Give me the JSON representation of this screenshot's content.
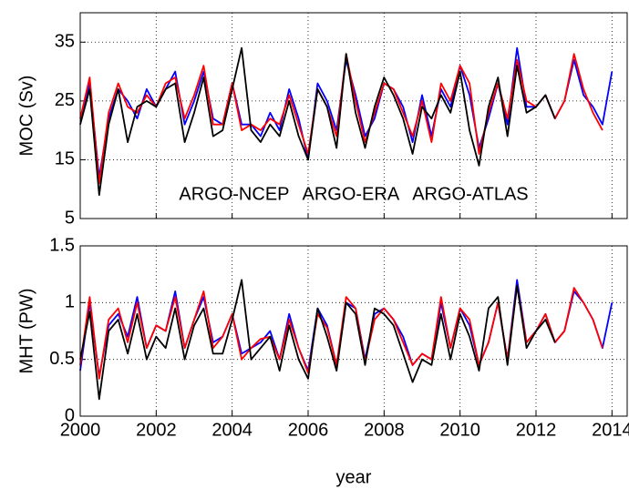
{
  "chart_data": [
    {
      "type": "line",
      "ylabel": "MOC (Sv)",
      "xlim": [
        2000,
        2014.4
      ],
      "xticks": [
        2000,
        2002,
        2004,
        2006,
        2008,
        2010,
        2012,
        2014
      ],
      "ylim": [
        5,
        40
      ],
      "yticks": [
        5,
        15,
        25,
        35
      ],
      "grid": true,
      "legend": "lower center",
      "x": [
        2000,
        2000.25,
        2000.5,
        2000.75,
        2001,
        2001.25,
        2001.5,
        2001.75,
        2002,
        2002.25,
        2002.5,
        2002.75,
        2003,
        2003.25,
        2003.5,
        2003.75,
        2004,
        2004.25,
        2004.5,
        2004.75,
        2005,
        2005.25,
        2005.5,
        2005.75,
        2006,
        2006.25,
        2006.5,
        2006.75,
        2007,
        2007.25,
        2007.5,
        2007.75,
        2008,
        2008.25,
        2008.5,
        2008.75,
        2009,
        2009.25,
        2009.5,
        2009.75,
        2010,
        2010.25,
        2010.5,
        2010.75,
        2011,
        2011.25,
        2011.5,
        2011.75,
        2012,
        2012.25,
        2012.5,
        2012.75,
        2013,
        2013.25,
        2013.5,
        2013.75,
        2014
      ],
      "series": [
        {
          "name": "ARGO-NCEP",
          "color": "#0000ff",
          "values": [
            21,
            28,
            12,
            22,
            27,
            25,
            22,
            27,
            24,
            27,
            30,
            21,
            25,
            30,
            22,
            21,
            28,
            21,
            21,
            19,
            23,
            20,
            27,
            22,
            15,
            28,
            25,
            20,
            32,
            26,
            19,
            22,
            28,
            27,
            24,
            18,
            26,
            19,
            27,
            24,
            31,
            26,
            17,
            22,
            28,
            21,
            34,
            24,
            24,
            26,
            22,
            25,
            32,
            26,
            24,
            21,
            30
          ]
        },
        {
          "name": "ARGO-ERA",
          "color": "#ff0000",
          "values": [
            22,
            29,
            11,
            23,
            28,
            24,
            23,
            26,
            24,
            28,
            29,
            22,
            26,
            31,
            21,
            21,
            28,
            20,
            21,
            20,
            22,
            21,
            26,
            21,
            16,
            27,
            24,
            19,
            33,
            25,
            18,
            23,
            28,
            27,
            23,
            19,
            25,
            18,
            28,
            25,
            31,
            28,
            16,
            23,
            28,
            22,
            32,
            25,
            24,
            26,
            22,
            25,
            33,
            27,
            23,
            20,
            null
          ]
        },
        {
          "name": "ARGO-ATLAS",
          "color": "#000000",
          "values": [
            21,
            27,
            9,
            21,
            27,
            18,
            24,
            25,
            24,
            27,
            28,
            18,
            23,
            29,
            19,
            20,
            27,
            34,
            20,
            18,
            21,
            19,
            25,
            19,
            15,
            27,
            24,
            17,
            33,
            23,
            17,
            24,
            29,
            26,
            22,
            16,
            24,
            22,
            26,
            23,
            30,
            20,
            14,
            24,
            29,
            19,
            31,
            23,
            24,
            26,
            22,
            null,
            null,
            null,
            null,
            null,
            null
          ]
        }
      ]
    },
    {
      "type": "line",
      "ylabel": "MHT (PW)",
      "xlabel": "year",
      "xlim": [
        2000,
        2014.4
      ],
      "xticks": [
        2000,
        2002,
        2004,
        2006,
        2008,
        2010,
        2012,
        2014
      ],
      "ylim": [
        0,
        1.5
      ],
      "yticks": [
        0,
        0.5,
        1,
        1.5
      ],
      "grid": true,
      "x": [
        2000,
        2000.25,
        2000.5,
        2000.75,
        2001,
        2001.25,
        2001.5,
        2001.75,
        2002,
        2002.25,
        2002.5,
        2002.75,
        2003,
        2003.25,
        2003.5,
        2003.75,
        2004,
        2004.25,
        2004.5,
        2004.75,
        2005,
        2005.25,
        2005.5,
        2005.75,
        2006,
        2006.25,
        2006.5,
        2006.75,
        2007,
        2007.25,
        2007.5,
        2007.75,
        2008,
        2008.25,
        2008.5,
        2008.75,
        2009,
        2009.25,
        2009.5,
        2009.75,
        2010,
        2010.25,
        2010.5,
        2010.75,
        2011,
        2011.25,
        2011.5,
        2011.75,
        2012,
        2012.25,
        2012.5,
        2012.75,
        2013,
        2013.25,
        2013.5,
        2013.75,
        2014
      ],
      "series": [
        {
          "name": "ARGO-NCEP",
          "color": "#0000ff",
          "values": [
            0.4,
            1.0,
            0.35,
            0.8,
            0.9,
            0.7,
            1.05,
            0.6,
            0.8,
            0.75,
            1.1,
            0.6,
            0.85,
            1.05,
            0.65,
            0.7,
            0.9,
            0.55,
            0.6,
            0.65,
            0.75,
            0.5,
            0.9,
            0.6,
            0.4,
            0.95,
            0.8,
            0.45,
            1.0,
            0.95,
            0.5,
            0.9,
            0.95,
            0.85,
            0.7,
            0.45,
            0.55,
            0.5,
            1.0,
            0.6,
            0.95,
            0.8,
            0.45,
            0.65,
            1.0,
            0.5,
            1.2,
            0.65,
            0.75,
            0.9,
            0.65,
            0.75,
            1.1,
            1.0,
            0.85,
            0.6,
            1.0
          ]
        },
        {
          "name": "ARGO-ERA",
          "color": "#ff0000",
          "values": [
            0.45,
            1.05,
            0.33,
            0.85,
            0.95,
            0.65,
            1.0,
            0.6,
            0.8,
            0.75,
            1.05,
            0.6,
            0.85,
            1.1,
            0.6,
            0.7,
            0.9,
            0.5,
            0.6,
            0.68,
            0.7,
            0.5,
            0.85,
            0.6,
            0.38,
            0.9,
            0.78,
            0.45,
            1.05,
            0.95,
            0.48,
            0.85,
            0.95,
            0.85,
            0.65,
            0.45,
            0.55,
            0.5,
            1.05,
            0.6,
            0.95,
            0.85,
            0.45,
            0.65,
            1.0,
            0.5,
            1.15,
            0.65,
            0.75,
            0.9,
            0.65,
            0.75,
            1.13,
            1.0,
            0.85,
            0.6,
            null
          ]
        },
        {
          "name": "ARGO-ATLAS",
          "color": "#000000",
          "values": [
            0.5,
            0.92,
            0.15,
            0.75,
            0.85,
            0.55,
            0.9,
            0.5,
            0.7,
            0.6,
            0.95,
            0.5,
            0.8,
            0.95,
            0.55,
            0.55,
            0.85,
            1.2,
            0.5,
            0.6,
            0.7,
            0.4,
            0.8,
            0.5,
            0.33,
            0.95,
            0.7,
            0.4,
            1.0,
            0.9,
            0.45,
            0.95,
            0.9,
            0.8,
            0.55,
            0.3,
            0.5,
            0.45,
            0.9,
            0.5,
            0.9,
            0.7,
            0.4,
            0.95,
            1.05,
            0.45,
            1.15,
            0.6,
            0.75,
            0.85,
            0.65,
            null,
            null,
            null,
            null,
            null,
            null
          ]
        }
      ]
    }
  ]
}
